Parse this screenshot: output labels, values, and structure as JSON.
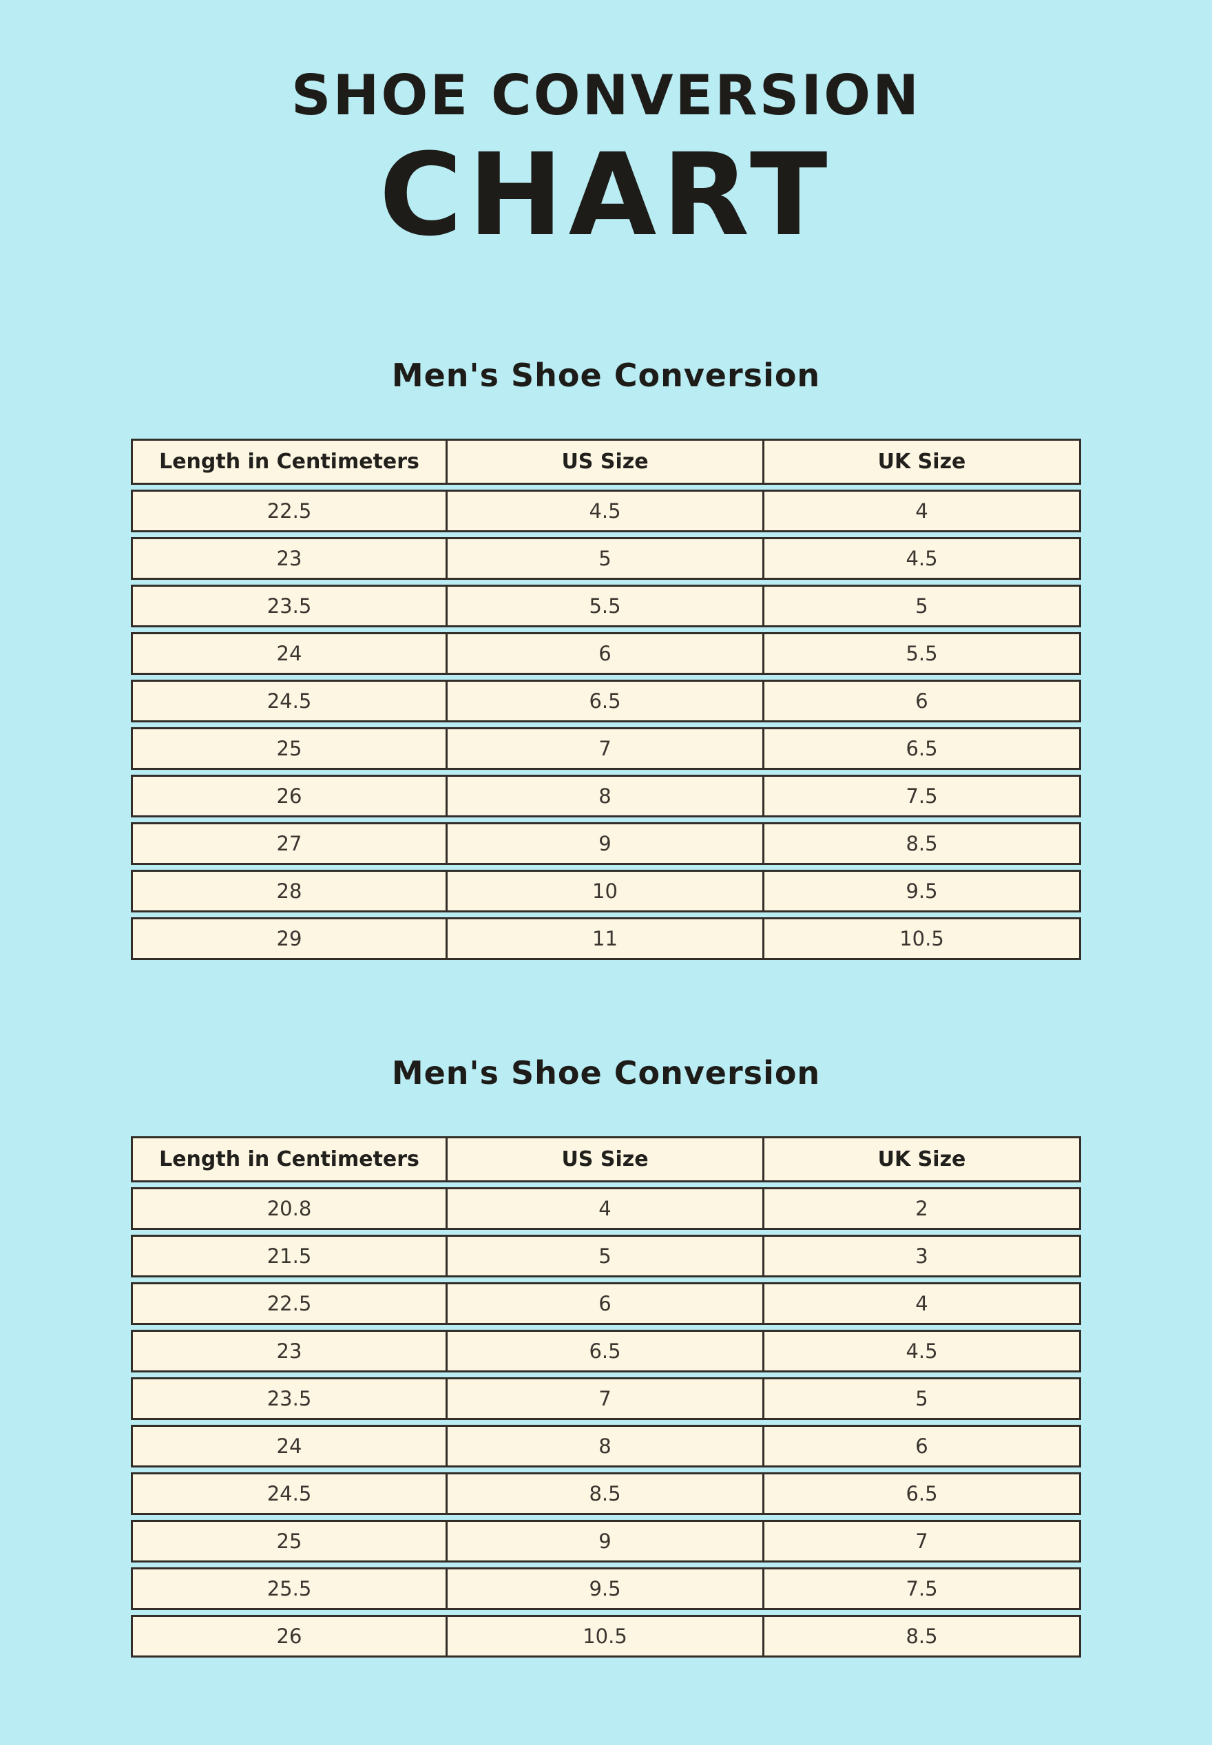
{
  "page": {
    "title_line1": "SHOE CONVERSION",
    "title_line2": "CHART"
  },
  "colors": {
    "background": "#b9edf3",
    "table_cell_background": "#fdf6e3",
    "ink": "#332e28"
  },
  "chart_data": [
    {
      "type": "table",
      "title": "Men's Shoe Conversion",
      "columns": [
        "Length in Centimeters",
        "US Size",
        "UK Size"
      ],
      "rows": [
        [
          "22.5",
          "4.5",
          "4"
        ],
        [
          "23",
          "5",
          "4.5"
        ],
        [
          "23.5",
          "5.5",
          "5"
        ],
        [
          "24",
          "6",
          "5.5"
        ],
        [
          "24.5",
          "6.5",
          "6"
        ],
        [
          "25",
          "7",
          "6.5"
        ],
        [
          "26",
          "8",
          "7.5"
        ],
        [
          "27",
          "9",
          "8.5"
        ],
        [
          "28",
          "10",
          "9.5"
        ],
        [
          "29",
          "11",
          "10.5"
        ]
      ]
    },
    {
      "type": "table",
      "title": "Men's Shoe Conversion",
      "columns": [
        "Length in Centimeters",
        "US Size",
        "UK Size"
      ],
      "rows": [
        [
          "20.8",
          "4",
          "2"
        ],
        [
          "21.5",
          "5",
          "3"
        ],
        [
          "22.5",
          "6",
          "4"
        ],
        [
          "23",
          "6.5",
          "4.5"
        ],
        [
          "23.5",
          "7",
          "5"
        ],
        [
          "24",
          "8",
          "6"
        ],
        [
          "24.5",
          "8.5",
          "6.5"
        ],
        [
          "25",
          "9",
          "7"
        ],
        [
          "25.5",
          "9.5",
          "7.5"
        ],
        [
          "26",
          "10.5",
          "8.5"
        ]
      ]
    }
  ]
}
